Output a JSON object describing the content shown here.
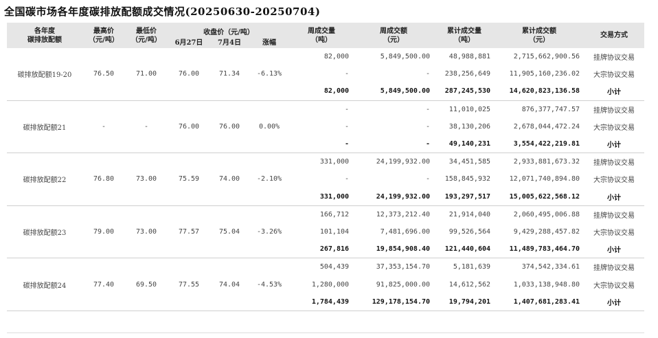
{
  "title": "全国碳市场各年度碳排放配额成交情况(20250630-20250704)",
  "headers": {
    "year": "各年度\n碳排放配额",
    "high": "最高价\n（元/吨）",
    "low": "最低价\n（元/吨）",
    "close_group": "收盘价（元/吨）",
    "close_prev": "6月27日",
    "close_curr": "7月4日",
    "change": "涨幅",
    "week_vol": "周成交量\n（吨）",
    "week_amt": "周成交额\n（元）",
    "cum_vol": "累计成交量\n（吨）",
    "cum_amt": "累计成交额\n（元）",
    "method": "交易方式"
  },
  "groups": [
    {
      "name": "碳排放配额19-20",
      "high": "76.50",
      "low": "71.00",
      "close_prev": "76.00",
      "close_curr": "71.34",
      "change": "-6.13%",
      "rows": [
        {
          "week_vol": "82,000",
          "week_amt": "5,849,500.00",
          "cum_vol": "48,988,881",
          "cum_amt": "2,715,662,900.56",
          "method": "挂牌协议交易"
        },
        {
          "week_vol": "-",
          "week_amt": "-",
          "cum_vol": "238,256,649",
          "cum_amt": "11,905,160,236.02",
          "method": "大宗协议交易"
        },
        {
          "week_vol": "82,000",
          "week_amt": "5,849,500.00",
          "cum_vol": "287,245,530",
          "cum_amt": "14,620,823,136.58",
          "method": "小计"
        }
      ]
    },
    {
      "name": "碳排放配额21",
      "high": "-",
      "low": "-",
      "close_prev": "76.00",
      "close_curr": "76.00",
      "change": "0.00%",
      "rows": [
        {
          "week_vol": "-",
          "week_amt": "-",
          "cum_vol": "11,010,025",
          "cum_amt": "876,377,747.57",
          "method": "挂牌协议交易"
        },
        {
          "week_vol": "-",
          "week_amt": "-",
          "cum_vol": "38,130,206",
          "cum_amt": "2,678,044,472.24",
          "method": "大宗协议交易"
        },
        {
          "week_vol": "-",
          "week_amt": "-",
          "cum_vol": "49,140,231",
          "cum_amt": "3,554,422,219.81",
          "method": "小计"
        }
      ]
    },
    {
      "name": "碳排放配额22",
      "high": "76.80",
      "low": "73.00",
      "close_prev": "75.59",
      "close_curr": "74.00",
      "change": "-2.10%",
      "rows": [
        {
          "week_vol": "331,000",
          "week_amt": "24,199,932.00",
          "cum_vol": "34,451,585",
          "cum_amt": "2,933,881,673.32",
          "method": "挂牌协议交易"
        },
        {
          "week_vol": "-",
          "week_amt": "-",
          "cum_vol": "158,845,932",
          "cum_amt": "12,071,740,894.80",
          "method": "大宗协议交易"
        },
        {
          "week_vol": "331,000",
          "week_amt": "24,199,932.00",
          "cum_vol": "193,297,517",
          "cum_amt": "15,005,622,568.12",
          "method": "小计"
        }
      ]
    },
    {
      "name": "碳排放配额23",
      "high": "79.00",
      "low": "73.00",
      "close_prev": "77.57",
      "close_curr": "75.04",
      "change": "-3.26%",
      "rows": [
        {
          "week_vol": "166,712",
          "week_amt": "12,373,212.40",
          "cum_vol": "21,914,040",
          "cum_amt": "2,060,495,006.88",
          "method": "挂牌协议交易"
        },
        {
          "week_vol": "101,104",
          "week_amt": "7,481,696.00",
          "cum_vol": "99,526,564",
          "cum_amt": "9,429,288,457.82",
          "method": "大宗协议交易"
        },
        {
          "week_vol": "267,816",
          "week_amt": "19,854,908.40",
          "cum_vol": "121,440,604",
          "cum_amt": "11,489,783,464.70",
          "method": "小计"
        }
      ]
    },
    {
      "name": "碳排放配额24",
      "high": "77.40",
      "low": "69.50",
      "close_prev": "77.55",
      "close_curr": "74.04",
      "change": "-4.53%",
      "rows": [
        {
          "week_vol": "504,439",
          "week_amt": "37,353,154.70",
          "cum_vol": "5,181,639",
          "cum_amt": "374,542,334.61",
          "method": "挂牌协议交易"
        },
        {
          "week_vol": "1,280,000",
          "week_amt": "91,825,000.00",
          "cum_vol": "14,612,562",
          "cum_amt": "1,033,138,948.80",
          "method": "大宗协议交易"
        },
        {
          "week_vol": "1,784,439",
          "week_amt": "129,178,154.70",
          "cum_vol": "19,794,201",
          "cum_amt": "1,407,681,283.41",
          "method": "小计"
        }
      ]
    }
  ]
}
